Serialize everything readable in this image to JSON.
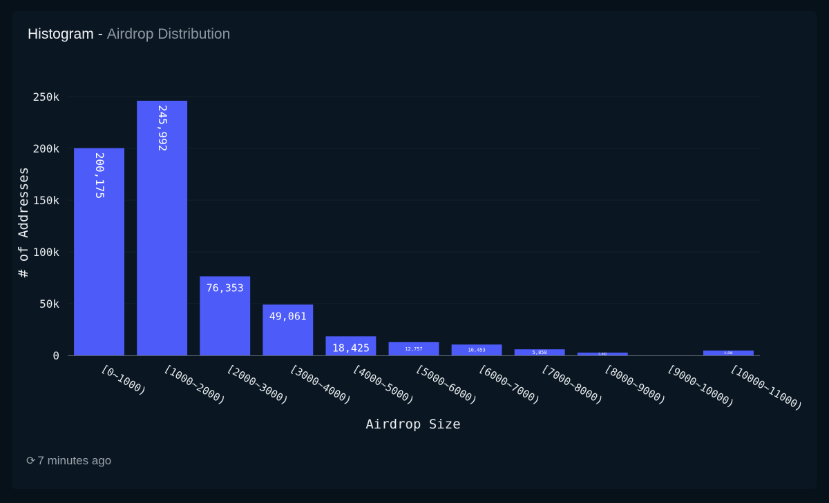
{
  "header": {
    "title": "Histogram",
    "separator": "-",
    "subtitle": "Airdrop Distribution"
  },
  "footer": {
    "refresh_icon": "refresh-icon",
    "updated_text": "7 minutes ago"
  },
  "colors": {
    "bar": "#4d5bf9",
    "background": "#0a1722",
    "axis_text": "#e8ecef",
    "muted_text": "#8e97a0"
  },
  "chart_data": {
    "type": "bar",
    "categories": [
      "[0~1000)",
      "[1000~2000)",
      "[2000~3000)",
      "[3000~4000)",
      "[4000~5000)",
      "[5000~6000)",
      "[6000~7000)",
      "[7000~8000)",
      "[8000~9000)",
      "[9000~10000)",
      "[10000~11000)"
    ],
    "values": [
      200175,
      245992,
      76353,
      49061,
      18425,
      12757,
      10453,
      5858,
      2602,
      0,
      4608
    ],
    "data_labels": [
      "200,175",
      "245,992",
      "76,353",
      "49,061",
      "18,425",
      "12,757",
      "10,453",
      "5,858",
      "2,602",
      "",
      "4,608"
    ],
    "xlabel": "Airdrop Size",
    "ylabel": "# of Addresses",
    "ylim": [
      0,
      250000
    ],
    "yticks": [
      {
        "value": 0,
        "label": "0"
      },
      {
        "value": 50000,
        "label": "50k"
      },
      {
        "value": 100000,
        "label": "100k"
      },
      {
        "value": 150000,
        "label": "150k"
      },
      {
        "value": 200000,
        "label": "200k"
      },
      {
        "value": 250000,
        "label": "250k"
      }
    ],
    "grid": true,
    "legend": "none"
  }
}
